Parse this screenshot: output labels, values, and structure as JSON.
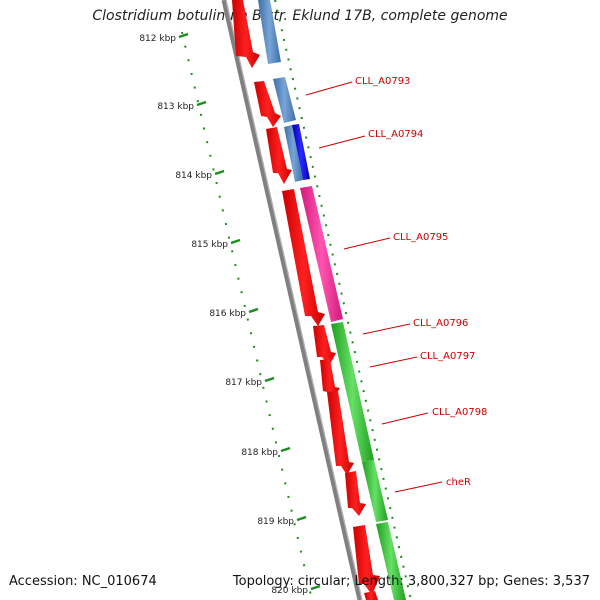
{
  "header": {
    "title": "Clostridium botulinum B str. Eklund 17B, complete genome"
  },
  "footer": {
    "accession": "Accession: NC_010674",
    "summary": "Topology: circular; Length: 3,800,327 bp; Genes: 3,537"
  },
  "ruler": {
    "tick_labels": [
      "812 kbp",
      "813 kbp",
      "814 kbp",
      "815 kbp",
      "816 kbp",
      "817 kbp",
      "818 kbp",
      "819 kbp",
      "820 kbp"
    ]
  },
  "gene_labels": [
    "CLL_A0793",
    "CLL_A0794",
    "CLL_A0795",
    "CLL_A0796",
    "CLL_A0797",
    "CLL_A0798",
    "cheR"
  ],
  "colors": {
    "cds_forward": "#ff0000",
    "cds_reverse": "#ff0000",
    "blue_light": "#4f86c6",
    "blue_dark": "#0000ee",
    "pink": "#ff3399",
    "green": "#33cc33",
    "backbone": "#808080",
    "tick": "#1a8f1a",
    "label": "#cc0000"
  }
}
